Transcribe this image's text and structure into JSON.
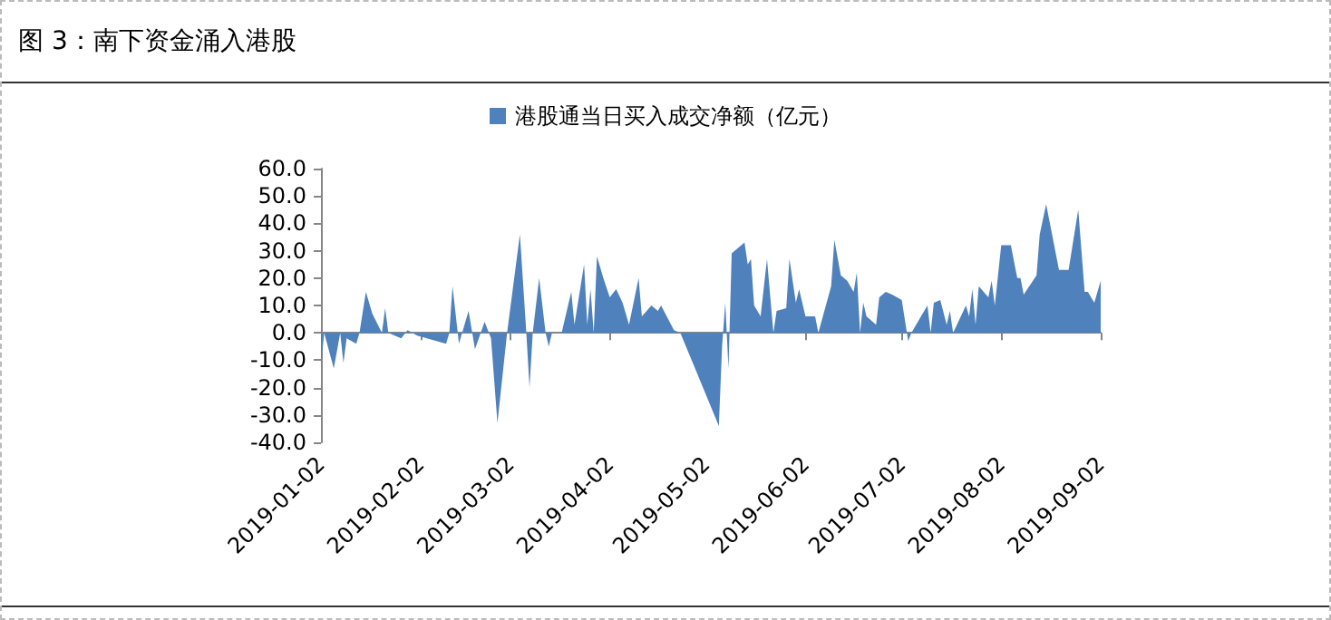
{
  "chart_data": {
    "type": "area",
    "title": "图 3：南下资金涌入港股",
    "legend": "top",
    "marker": "none",
    "x": [
      "2019-01-02",
      "2019-01-03",
      "2019-01-06",
      "2019-01-08",
      "2019-01-09",
      "2019-01-10",
      "2019-01-13",
      "2019-01-14",
      "2019-01-16",
      "2019-01-18",
      "2019-01-21",
      "2019-01-22",
      "2019-01-23",
      "2019-01-27",
      "2019-01-29",
      "2019-02-01",
      "2019-02-10",
      "2019-02-11",
      "2019-02-12",
      "2019-02-14",
      "2019-02-17",
      "2019-02-19",
      "2019-02-22",
      "2019-02-24",
      "2019-02-26",
      "2019-03-01",
      "2019-03-05",
      "2019-03-07",
      "2019-03-08",
      "2019-03-09",
      "2019-03-11",
      "2019-03-13",
      "2019-03-14",
      "2019-03-15",
      "2019-03-18",
      "2019-03-21",
      "2019-03-22",
      "2019-03-25",
      "2019-03-26",
      "2019-03-27",
      "2019-03-28",
      "2019-03-29",
      "2019-03-31",
      "2019-04-02",
      "2019-04-04",
      "2019-04-06",
      "2019-04-08",
      "2019-04-11",
      "2019-04-12",
      "2019-04-15",
      "2019-04-17",
      "2019-04-18",
      "2019-04-22",
      "2019-04-24",
      "2019-05-06",
      "2019-05-07",
      "2019-05-08",
      "2019-05-09",
      "2019-05-10",
      "2019-05-14",
      "2019-05-15",
      "2019-05-16",
      "2019-05-17",
      "2019-05-19",
      "2019-05-21",
      "2019-05-23",
      "2019-05-24",
      "2019-05-27",
      "2019-05-28",
      "2019-05-30",
      "2019-05-31",
      "2019-06-02",
      "2019-06-05",
      "2019-06-06",
      "2019-06-10",
      "2019-06-11",
      "2019-06-13",
      "2019-06-15",
      "2019-06-17",
      "2019-06-18",
      "2019-06-19",
      "2019-06-20",
      "2019-06-21",
      "2019-06-24",
      "2019-06-25",
      "2019-06-27",
      "2019-06-29",
      "2019-07-02",
      "2019-07-04",
      "2019-07-05",
      "2019-07-10",
      "2019-07-11",
      "2019-07-12",
      "2019-07-14",
      "2019-07-16",
      "2019-07-17",
      "2019-07-18",
      "2019-07-22",
      "2019-07-23",
      "2019-07-24",
      "2019-07-25",
      "2019-07-26",
      "2019-07-29",
      "2019-07-30",
      "2019-07-31",
      "2019-08-02",
      "2019-08-05",
      "2019-08-07",
      "2019-08-08",
      "2019-08-09",
      "2019-08-13",
      "2019-08-14",
      "2019-08-16",
      "2019-08-20",
      "2019-08-23",
      "2019-08-26",
      "2019-08-28",
      "2019-08-29",
      "2019-08-31",
      "2019-09-02"
    ],
    "series": [
      {
        "name": "港股通当日买入成交净额（亿元）",
        "color": "#4f81bd",
        "values": [
          -12,
          0,
          -13,
          0,
          -11,
          -2,
          -4,
          0,
          15,
          7,
          0,
          9,
          0,
          -2,
          1,
          -1,
          -4,
          0,
          17,
          -4,
          8,
          -6,
          4,
          -2,
          -33,
          0,
          36,
          0,
          -20,
          0,
          20,
          0,
          -5,
          0,
          0,
          15,
          3,
          25,
          3,
          16,
          0,
          28,
          20,
          13,
          16,
          11,
          3,
          20,
          6,
          10,
          8,
          10,
          1,
          0,
          -34,
          -5,
          11,
          -13,
          29,
          33,
          25,
          27,
          10,
          6,
          27,
          0,
          8,
          9,
          27,
          11,
          16,
          6,
          6,
          0,
          17,
          34,
          21,
          19,
          15,
          22,
          0,
          11,
          6,
          3,
          13,
          15,
          14,
          12,
          -3,
          0,
          10,
          0,
          11,
          12,
          3,
          8,
          0,
          10,
          6,
          16,
          3,
          17,
          13,
          19,
          10,
          32,
          32,
          20,
          20,
          14,
          21,
          36,
          47,
          23,
          23,
          45,
          15,
          15,
          11,
          19
        ]
      }
    ],
    "xlim": [
      "2019-01-02",
      "2019-09-02"
    ],
    "xticks": [
      "2019-01-02",
      "2019-02-02",
      "2019-03-02",
      "2019-04-02",
      "2019-05-02",
      "2019-06-02",
      "2019-07-02",
      "2019-08-02",
      "2019-09-02"
    ],
    "ylim": [
      -40,
      60
    ],
    "yticks": [
      {
        "value": -40,
        "label": "-40.0"
      },
      {
        "value": -30,
        "label": "-30.0"
      },
      {
        "value": -20,
        "label": "-20.0"
      },
      {
        "value": -10,
        "label": "-10.0"
      },
      {
        "value": 0,
        "label": "0.0"
      },
      {
        "value": 10,
        "label": "10.0"
      },
      {
        "value": 20,
        "label": "20.0"
      },
      {
        "value": 30,
        "label": "30.0"
      },
      {
        "value": 40,
        "label": "40.0"
      },
      {
        "value": 50,
        "label": "50.0"
      },
      {
        "value": 60,
        "label": "60.0"
      }
    ]
  }
}
